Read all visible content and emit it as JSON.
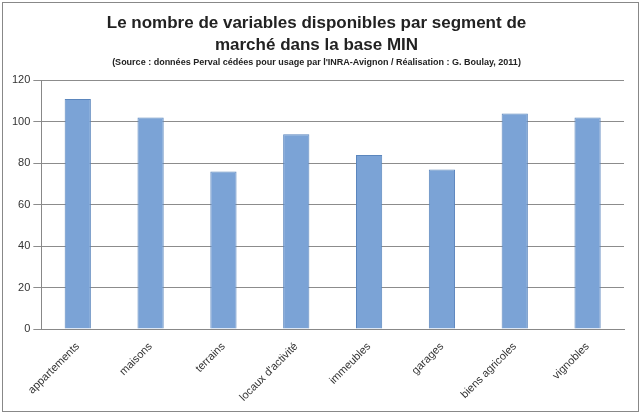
{
  "chart_data": {
    "type": "bar",
    "title": [
      "Le nombre de variables disponibles par segment de",
      "marché dans la base MIN"
    ],
    "subtitle": "(Source : données Perval cédées pour usage par l'INRA-Avignon / Réalisation : G. Boulay, 2011)",
    "categories": [
      "appartements",
      "maisons",
      "terrains",
      "locaux d'activité",
      "immeubles",
      "garages",
      "biens agricoles",
      "vignobles"
    ],
    "values": [
      111,
      102,
      76,
      94,
      84,
      77,
      104,
      102
    ],
    "color": "#7ba3d6",
    "ylim": [
      0,
      120
    ],
    "yticks": [
      0,
      20,
      40,
      60,
      80,
      100,
      120
    ],
    "grid": true
  }
}
